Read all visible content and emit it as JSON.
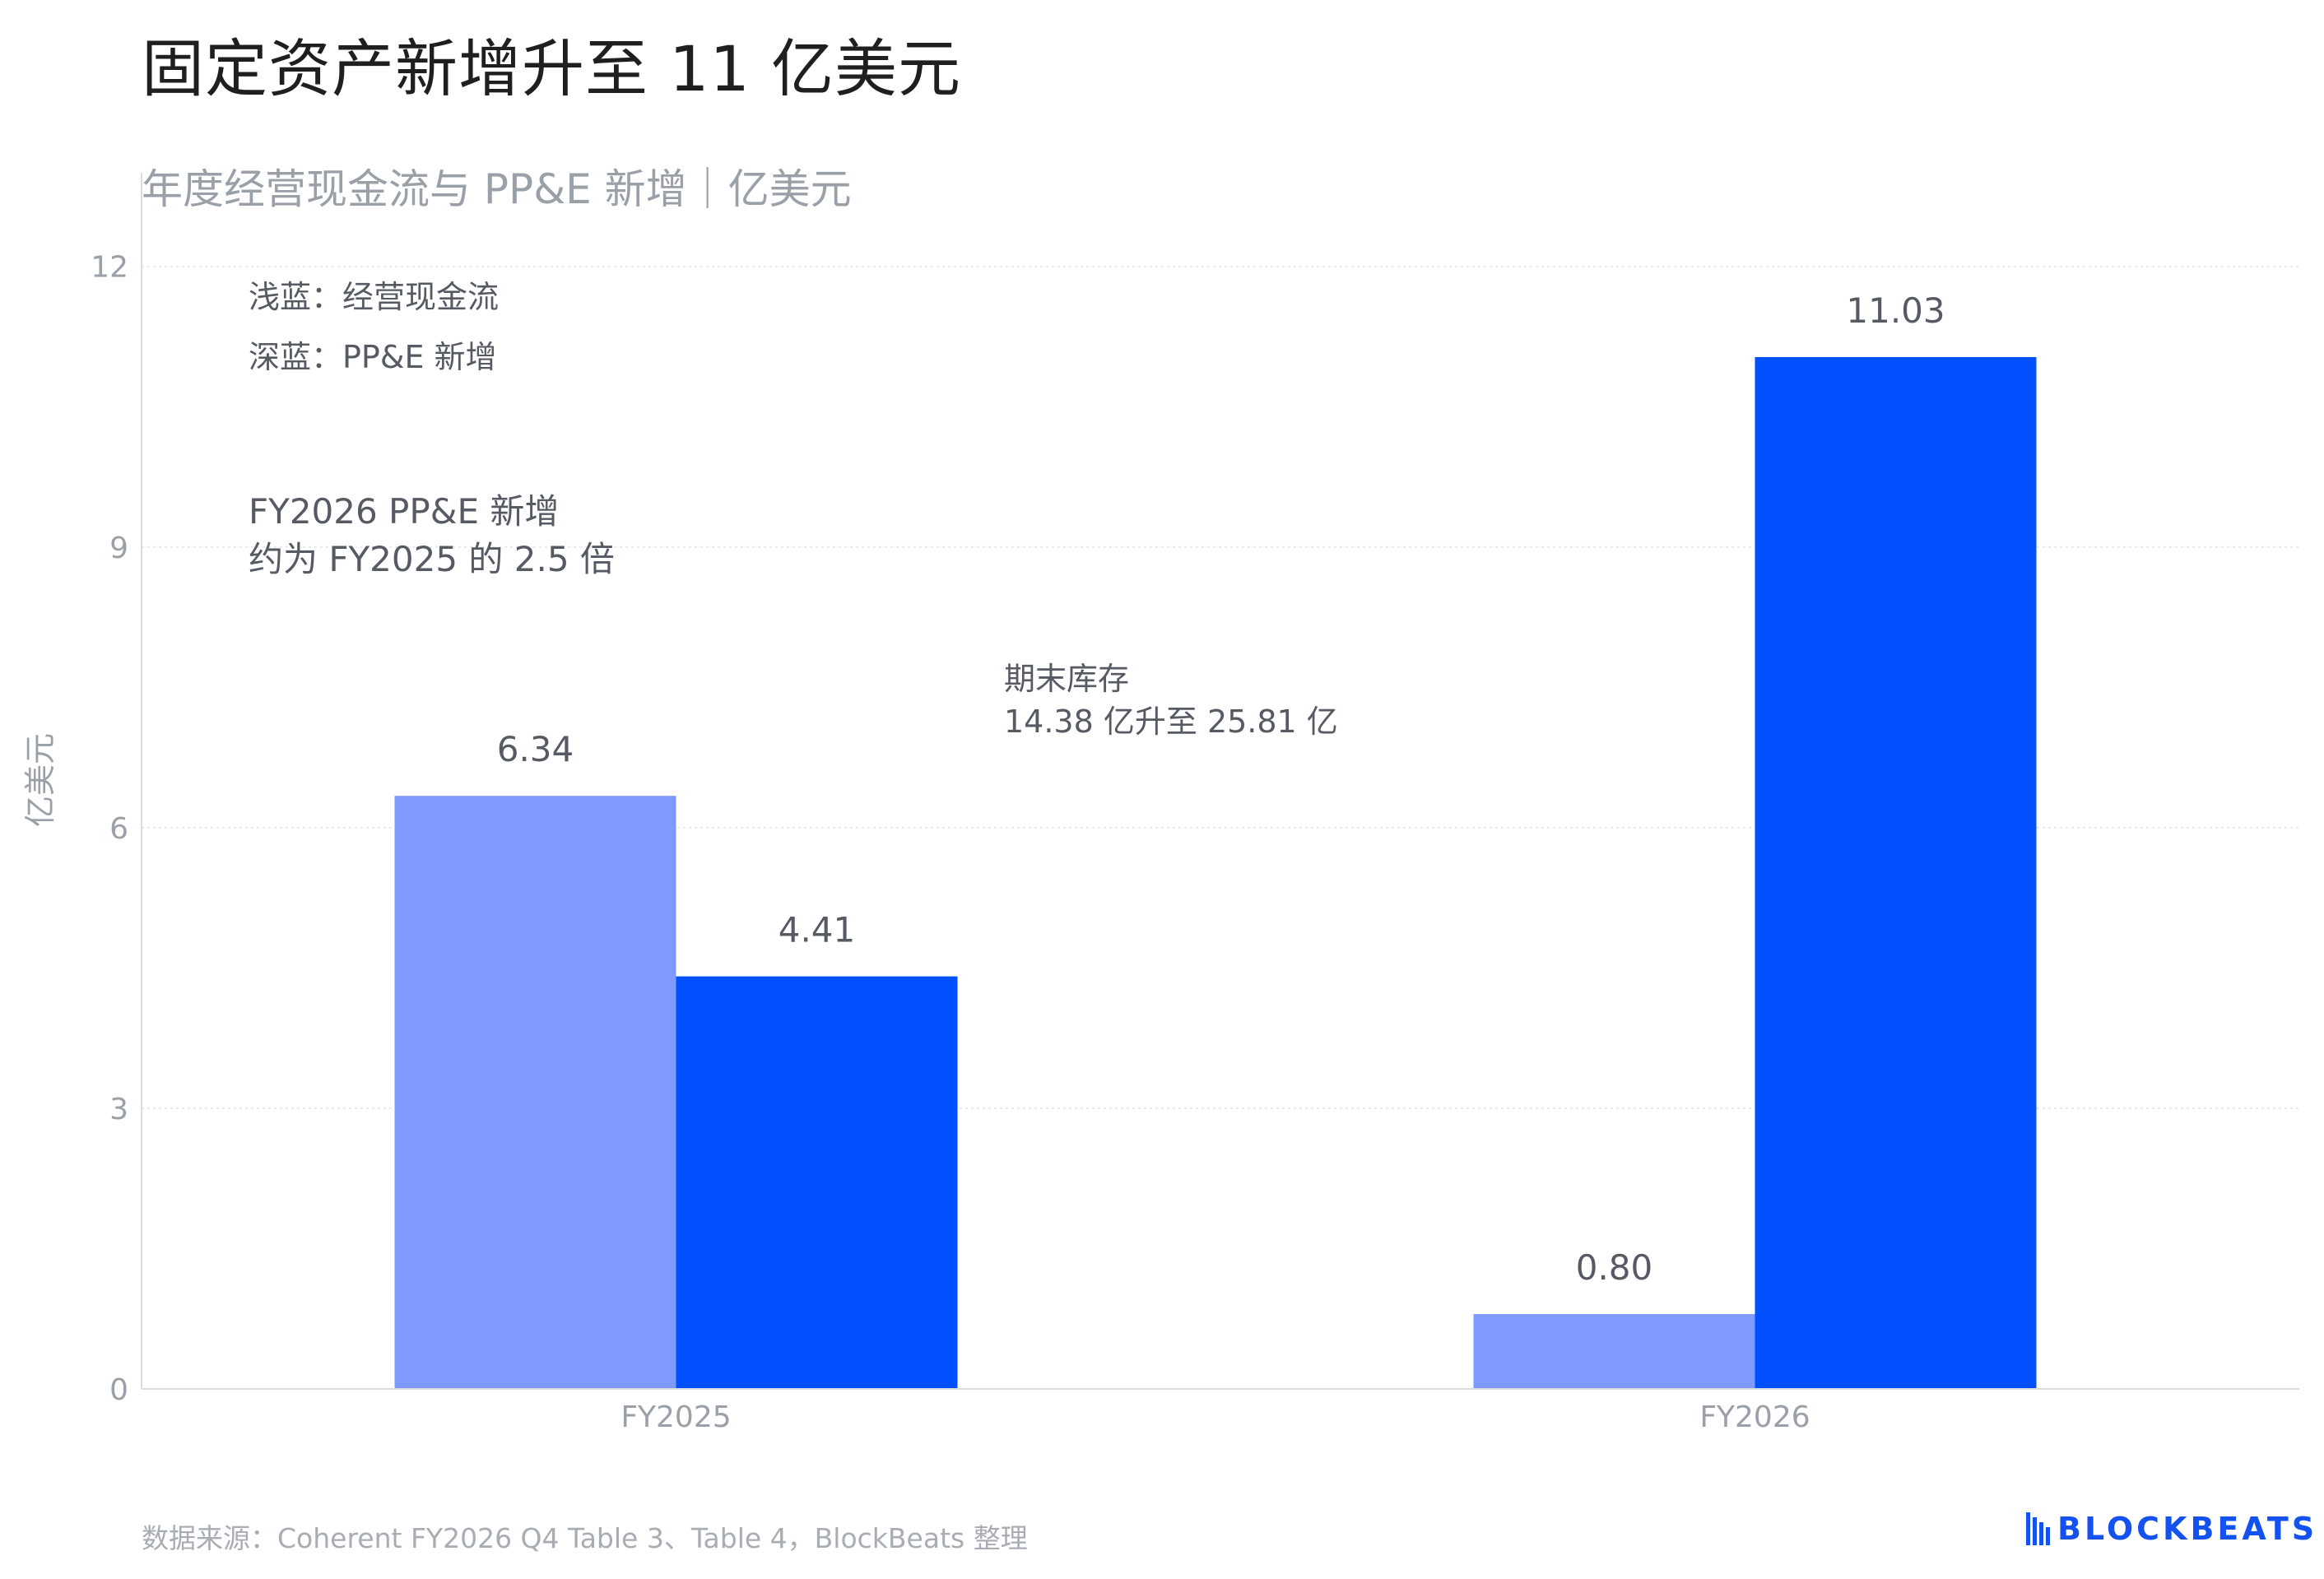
{
  "title": "固定资产新增升至 11 亿美元",
  "subtitle": "年度经营现金流与 PP&E 新增｜亿美元",
  "source": "数据来源：Coherent FY2026 Q4 Table 3、Table 4，BlockBeats 整理",
  "logo": {
    "text": "BLOCKBEATS",
    "icon": "blockbeats-logo-icon",
    "color": "#1452F0"
  },
  "legend_notes": [
    "浅蓝：经营现金流",
    "深蓝：PP&E 新增"
  ],
  "annotations": [
    {
      "lines": [
        "FY2026 PP&E 新增",
        "约为 FY2025 的 2.5 倍"
      ]
    },
    {
      "lines": [
        "期末库存",
        "14.38 亿升至 25.81 亿"
      ]
    }
  ],
  "colors": {
    "light_series": "#7F9AFF",
    "dark_series": "#0050FF",
    "grid": "#e6e8ec",
    "axis": "#d9dce1"
  },
  "chart_data": {
    "type": "bar",
    "categories": [
      "FY2025",
      "FY2026"
    ],
    "series": [
      {
        "values": [
          6.34,
          0.8
        ],
        "color": "#7F9AFF"
      },
      {
        "values": [
          4.41,
          11.03
        ],
        "color": "#0050FF"
      }
    ],
    "value_labels": [
      [
        "6.34",
        "0.80"
      ],
      [
        "4.41",
        "11.03"
      ]
    ],
    "ylabel": "亿美元",
    "ylim": [
      0,
      13
    ],
    "yticks": [
      0,
      3,
      6,
      9,
      12
    ],
    "grid": true
  }
}
